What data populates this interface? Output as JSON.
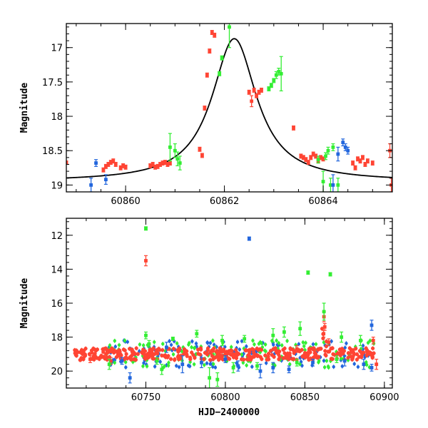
{
  "colors": {
    "red": "#ff4433",
    "green": "#33ee33",
    "blue": "#2266dd",
    "model": "#000000"
  },
  "chart_data": [
    {
      "type": "scatter",
      "xlabel": "",
      "ylabel": "Magnitude",
      "xlim": [
        60858.8,
        60865.4
      ],
      "ylim": [
        19.1,
        16.65
      ],
      "y_inverted": true,
      "x_ticks": [
        60860,
        60862,
        60864
      ],
      "y_ticks": [
        17,
        17.5,
        18,
        18.5,
        19
      ],
      "model_curve": {
        "shape": "lorentzian",
        "peak_x": 60862.2,
        "peak_mag": 16.87,
        "baseline_mag": 18.95,
        "half_width": 0.55
      },
      "series": [
        {
          "color": "red",
          "points": [
            [
              60858.8,
              18.67,
              0.02
            ],
            [
              60859.55,
              18.78,
              0.03
            ],
            [
              60859.6,
              18.73,
              0.03
            ],
            [
              60859.65,
              18.7,
              0.03
            ],
            [
              60859.7,
              18.67,
              0.03
            ],
            [
              60859.75,
              18.65,
              0.03
            ],
            [
              60859.8,
              18.7,
              0.03
            ],
            [
              60859.9,
              18.75,
              0.03
            ],
            [
              60859.95,
              18.72,
              0.03
            ],
            [
              60860.0,
              18.74,
              0.03
            ],
            [
              60860.5,
              18.72,
              0.03
            ],
            [
              60860.55,
              18.7,
              0.03
            ],
            [
              60860.6,
              18.74,
              0.03
            ],
            [
              60860.65,
              18.73,
              0.03
            ],
            [
              60860.7,
              18.7,
              0.03
            ],
            [
              60860.75,
              18.68,
              0.03
            ],
            [
              60860.8,
              18.67,
              0.03
            ],
            [
              60860.85,
              18.7,
              0.03
            ],
            [
              60860.9,
              18.68,
              0.03
            ],
            [
              60861.5,
              18.48,
              0.03
            ],
            [
              60861.55,
              18.57,
              0.03
            ],
            [
              60861.6,
              17.88,
              0.03
            ],
            [
              60861.65,
              17.4,
              0.03
            ],
            [
              60861.7,
              17.05,
              0.03
            ],
            [
              60861.75,
              16.78,
              0.03
            ],
            [
              60861.8,
              16.82,
              0.03
            ],
            [
              60862.5,
              17.65,
              0.03
            ],
            [
              60862.55,
              17.78,
              0.08
            ],
            [
              60862.6,
              17.62,
              0.03
            ],
            [
              60862.65,
              17.7,
              0.03
            ],
            [
              60862.7,
              17.65,
              0.03
            ],
            [
              60862.75,
              17.62,
              0.03
            ],
            [
              60863.4,
              18.17,
              0.03
            ],
            [
              60863.55,
              18.58,
              0.03
            ],
            [
              60863.6,
              18.6,
              0.03
            ],
            [
              60863.65,
              18.63,
              0.03
            ],
            [
              60863.7,
              18.67,
              0.03
            ],
            [
              60863.75,
              18.6,
              0.03
            ],
            [
              60863.8,
              18.55,
              0.03
            ],
            [
              60863.85,
              18.58,
              0.03
            ],
            [
              60863.9,
              18.65,
              0.03
            ],
            [
              60863.95,
              18.6,
              0.03
            ],
            [
              60864.0,
              18.62,
              0.03
            ],
            [
              60864.6,
              18.68,
              0.03
            ],
            [
              60864.65,
              18.75,
              0.03
            ],
            [
              60864.7,
              18.62,
              0.03
            ],
            [
              60864.75,
              18.65,
              0.03
            ],
            [
              60864.8,
              18.6,
              0.03
            ],
            [
              60864.85,
              18.7,
              0.03
            ],
            [
              60864.9,
              18.65,
              0.03
            ],
            [
              60865.0,
              18.68,
              0.03
            ],
            [
              60865.35,
              18.5,
              0.1
            ],
            [
              60865.38,
              19.0,
              0.1
            ]
          ]
        },
        {
          "color": "green",
          "points": [
            [
              60860.9,
              18.45,
              0.2
            ],
            [
              60861.0,
              18.5,
              0.1
            ],
            [
              60861.05,
              18.62,
              0.1
            ],
            [
              60861.1,
              18.68,
              0.1
            ],
            [
              60861.9,
              17.38,
              0.03
            ],
            [
              60861.95,
              17.15,
              0.03
            ],
            [
              60862.1,
              16.7,
              0.3
            ],
            [
              60862.9,
              17.6,
              0.03
            ],
            [
              60862.95,
              17.55,
              0.03
            ],
            [
              60863.0,
              17.48,
              0.03
            ],
            [
              60863.05,
              17.4,
              0.05
            ],
            [
              60863.1,
              17.35,
              0.05
            ],
            [
              60863.15,
              17.38,
              0.25
            ],
            [
              60863.9,
              18.63,
              0.05
            ],
            [
              60864.0,
              18.95,
              0.15
            ],
            [
              60864.05,
              18.58,
              0.05
            ],
            [
              60864.1,
              18.5,
              0.05
            ],
            [
              60864.15,
              19.0,
              0.1
            ],
            [
              60864.2,
              18.45,
              0.05
            ],
            [
              60864.3,
              19.0,
              0.1
            ]
          ]
        },
        {
          "color": "blue",
          "points": [
            [
              60859.3,
              19.0,
              0.1
            ],
            [
              60859.4,
              18.68,
              0.05
            ],
            [
              60859.6,
              18.92,
              0.07
            ],
            [
              60864.2,
              19.0,
              0.15
            ],
            [
              60864.3,
              18.55,
              0.1
            ],
            [
              60864.4,
              18.38,
              0.05
            ],
            [
              60864.45,
              18.45,
              0.05
            ],
            [
              60864.5,
              18.5,
              0.05
            ]
          ]
        }
      ]
    },
    {
      "type": "scatter",
      "xlabel": "HJD−2400000",
      "ylabel": "Magnitude",
      "xlim": [
        60700,
        60905
      ],
      "ylim": [
        21.0,
        11.0
      ],
      "y_inverted": true,
      "x_ticks": [
        60750,
        60800,
        60850,
        60900
      ],
      "y_ticks": [
        12,
        14,
        16,
        18,
        20
      ],
      "band_summary": {
        "x_start": 60705,
        "x_end": 60895,
        "mean_mag": 19.0
      },
      "series": [
        {
          "color": "red",
          "points": [
            [
              60750,
              13.5,
              0.3
            ],
            [
              60862,
              16.8,
              0.3
            ],
            [
              60862.5,
              17.4,
              0.2
            ],
            [
              60861.8,
              17.8,
              0.2
            ],
            [
              60893,
              18.2,
              0.2
            ],
            [
              60715,
              19.3,
              0.2
            ],
            [
              60895,
              19.6,
              0.3
            ],
            [
              60845,
              18.7,
              0.2
            ],
            [
              60865,
              18.3,
              0.2
            ],
            [
              60728,
              19.4,
              0.2
            ]
          ]
        },
        {
          "color": "green",
          "points": [
            [
              60750,
              11.6,
              0.1
            ],
            [
              60852,
              14.2,
              0.1
            ],
            [
              60866,
              14.3,
              0.1
            ],
            [
              60862,
              16.5,
              0.5
            ],
            [
              60750,
              17.9,
              0.2
            ],
            [
              60752,
              18.4,
              0.2
            ],
            [
              60767,
              18.1,
              0.1
            ],
            [
              60782,
              17.8,
              0.2
            ],
            [
              60798,
              18.2,
              0.3
            ],
            [
              60812,
              18.1,
              0.2
            ],
            [
              60830,
              17.9,
              0.4
            ],
            [
              60837,
              17.7,
              0.3
            ],
            [
              60847,
              17.5,
              0.4
            ],
            [
              60873,
              18.0,
              0.3
            ],
            [
              60885,
              18.2,
              0.3
            ],
            [
              60727,
              19.6,
              0.3
            ],
            [
              60760,
              19.9,
              0.3
            ],
            [
              60790,
              20.4,
              0.6
            ],
            [
              60795,
              20.5,
              0.4
            ],
            [
              60805,
              19.8,
              0.3
            ],
            [
              60820,
              19.7,
              0.2
            ],
            [
              60845,
              19.5,
              0.2
            ],
            [
              60870,
              19.3,
              0.2
            ],
            [
              60757,
              19.4,
              0.2
            ]
          ]
        },
        {
          "color": "blue",
          "points": [
            [
              60815,
              12.2,
              0.1
            ],
            [
              60740,
              20.4,
              0.3
            ],
            [
              60892,
              17.3,
              0.3
            ],
            [
              60763,
              18.6,
              0.3
            ],
            [
              60773,
              19.6,
              0.5
            ],
            [
              60808,
              19.7,
              0.3
            ],
            [
              60822,
              20.0,
              0.4
            ],
            [
              60830,
              19.8,
              0.3
            ],
            [
              60840,
              19.9,
              0.2
            ],
            [
              60855,
              19.5,
              0.2
            ],
            [
              60875,
              19.4,
              0.3
            ],
            [
              60887,
              19.6,
              0.3
            ],
            [
              60735,
              19.4,
              0.2
            ],
            [
              60785,
              19.5,
              0.3
            ],
            [
              60800,
              19.3,
              0.2
            ],
            [
              60892,
              19.8,
              0.2
            ]
          ]
        }
      ]
    }
  ]
}
